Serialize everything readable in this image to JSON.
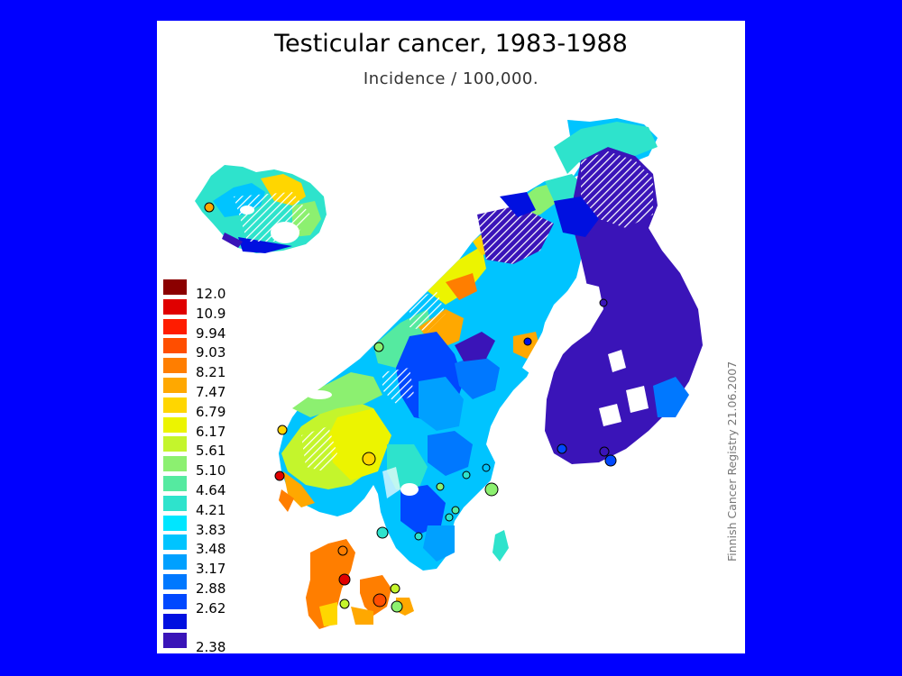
{
  "title": "Testicular cancer, 1983-1988",
  "subtitle": "Incidence / 100,000.",
  "credit": "Finnish Cancer Registry 21.06.2007",
  "colors": {
    "background": "#0000ff",
    "panel": "#ffffff"
  },
  "legend": [
    {
      "label": "12.0",
      "color": "#8b0000"
    },
    {
      "label": "10.9",
      "color": "#e00000"
    },
    {
      "label": "9.94",
      "color": "#ff1c00"
    },
    {
      "label": "9.03",
      "color": "#ff4e00"
    },
    {
      "label": "8.21",
      "color": "#ff7e00"
    },
    {
      "label": "7.47",
      "color": "#ffa800"
    },
    {
      "label": "6.79",
      "color": "#ffd600"
    },
    {
      "label": "6.17",
      "color": "#ecf400"
    },
    {
      "label": "5.61",
      "color": "#c4f52c"
    },
    {
      "label": "5.10",
      "color": "#8cf070"
    },
    {
      "label": "4.64",
      "color": "#55eaa0"
    },
    {
      "label": "4.21",
      "color": "#2ee3cc"
    },
    {
      "label": "3.83",
      "color": "#00e6ff"
    },
    {
      "label": "3.48",
      "color": "#00c4ff"
    },
    {
      "label": "3.17",
      "color": "#00a0ff"
    },
    {
      "label": "2.88",
      "color": "#0078ff"
    },
    {
      "label": "2.62",
      "color": "#0048ff"
    },
    {
      "label": "",
      "color": "#0010e0"
    },
    {
      "label": "2.38",
      "color": "#3a14b8"
    }
  ]
}
